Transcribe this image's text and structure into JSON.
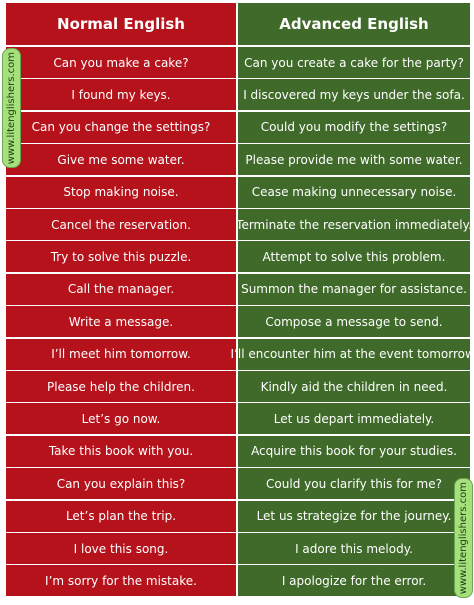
{
  "header": {
    "columns": [
      "Normal English",
      "Advanced English"
    ]
  },
  "table": {
    "rows": [
      [
        "Can you make a cake?",
        "Can you create a cake for the party?"
      ],
      [
        "I found my keys.",
        "I discovered my keys under the sofa."
      ],
      [
        "Can you change the settings?",
        "Could you modify the settings?"
      ],
      [
        "Give me some water.",
        "Please provide me with some water."
      ],
      [
        "Stop making noise.",
        "Cease making unnecessary noise."
      ],
      [
        "Cancel the reservation.",
        "Terminate the reservation immediately."
      ],
      [
        "Try to solve this puzzle.",
        "Attempt to solve this problem."
      ],
      [
        "Call the manager.",
        "Summon the manager for assistance."
      ],
      [
        "Write a message.",
        "Compose a message to send."
      ],
      [
        "I’ll meet him tomorrow.",
        "I’ll encounter him at the event tomorrow."
      ],
      [
        "Please help the children.",
        "Kindly aid the children in need."
      ],
      [
        "Let’s go now.",
        "Let us depart immediately."
      ],
      [
        "Take this book with you.",
        "Acquire this book for your studies."
      ],
      [
        "Can you explain this?",
        "Could you clarify this for me?"
      ],
      [
        "Let’s plan the trip.",
        "Let us strategize for the journey."
      ],
      [
        "I love this song.",
        "I adore this melody."
      ],
      [
        "I’m sorry for the mistake.",
        "I apologize for the error."
      ]
    ]
  },
  "watermark_left": "www.litenglishers.com",
  "watermark_right": "www.litenglishers.com"
}
